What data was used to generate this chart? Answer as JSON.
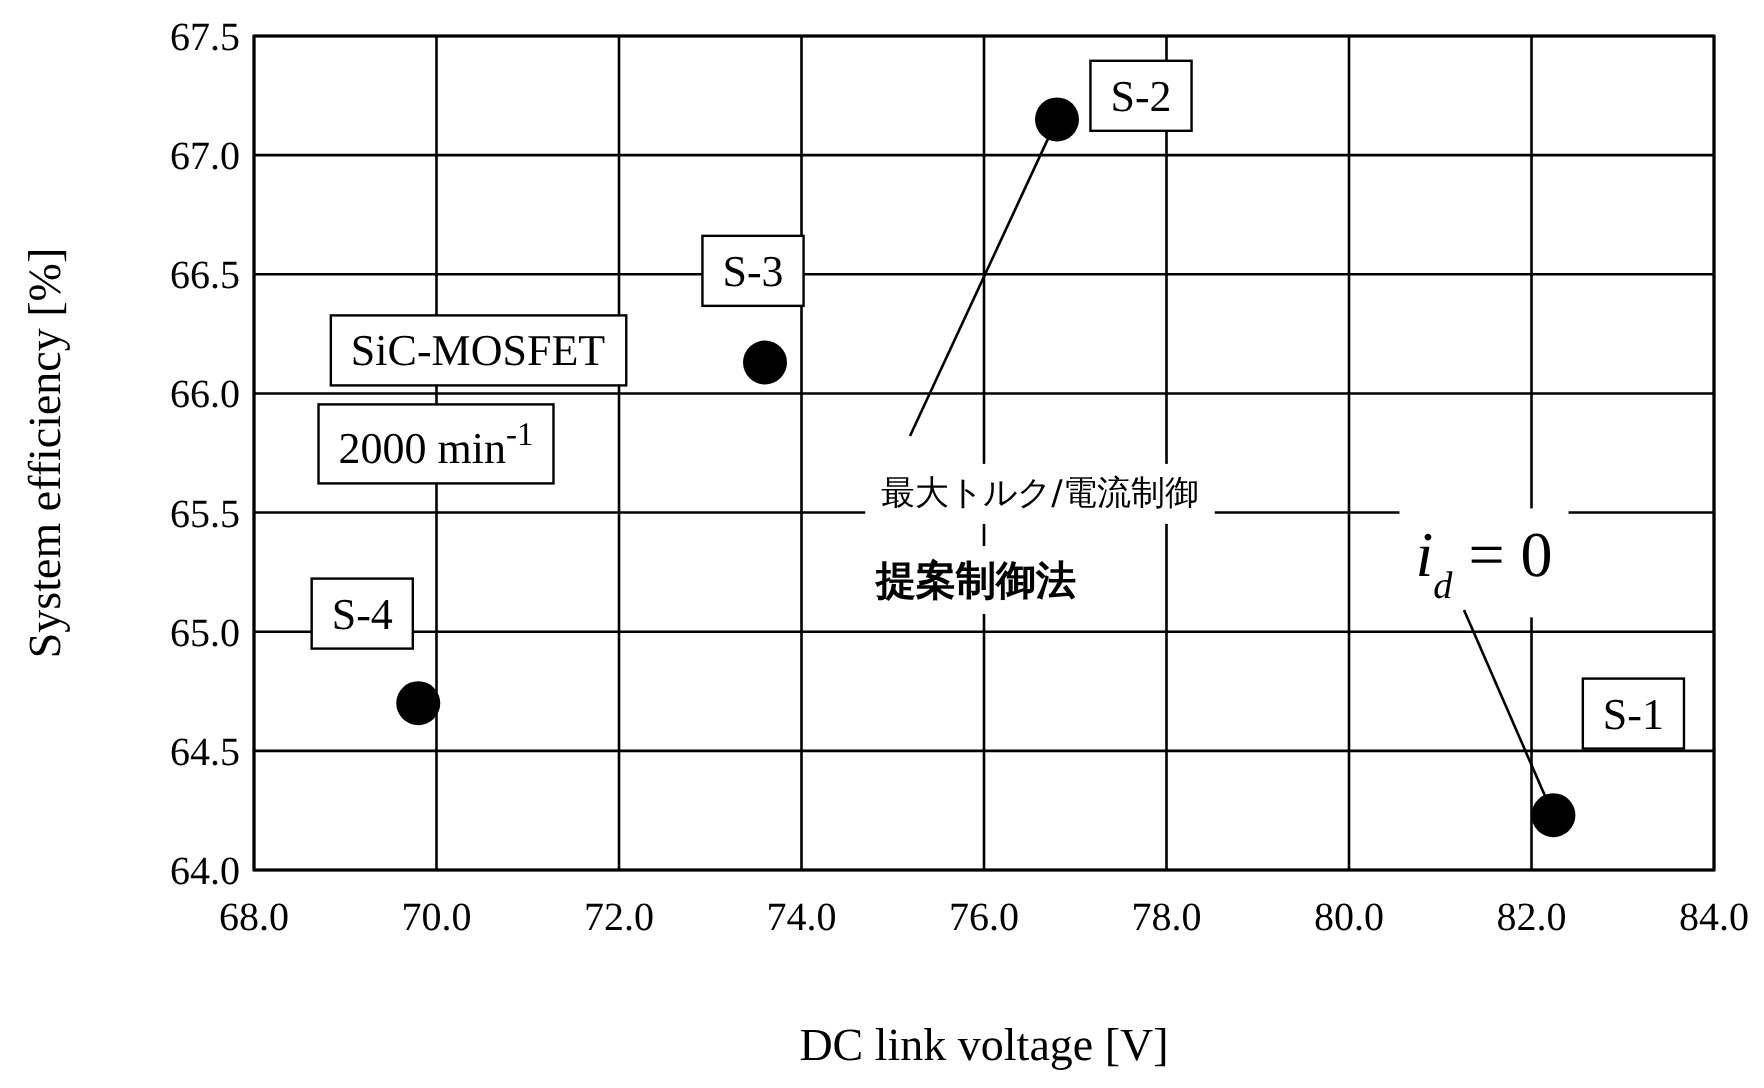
{
  "chart_data": {
    "type": "scatter",
    "xlabel": "DC link voltage [V]",
    "ylabel": "System efficiency [%]",
    "x": [
      82.24,
      76.8,
      73.6,
      69.8
    ],
    "values": [
      64.23,
      67.15,
      66.13,
      64.7
    ],
    "color": "#000000",
    "marker": "circle",
    "grid": true,
    "xlim": [
      68,
      84
    ],
    "ylim": [
      64,
      67.5
    ],
    "xticks": [
      {
        "value": 68,
        "label": "68.0"
      },
      {
        "value": 70,
        "label": "70.0"
      },
      {
        "value": 72,
        "label": "72.0"
      },
      {
        "value": 74,
        "label": "74.0"
      },
      {
        "value": 76,
        "label": "76.0"
      },
      {
        "value": 78,
        "label": "78.0"
      },
      {
        "value": 80,
        "label": "80.0"
      },
      {
        "value": 82,
        "label": "82.0"
      },
      {
        "value": 84,
        "label": "84.0"
      }
    ],
    "yticks": [
      {
        "value": 64,
        "label": "64.0"
      },
      {
        "value": 64.5,
        "label": "64.5"
      },
      {
        "value": 65,
        "label": "65.0"
      },
      {
        "value": 65.5,
        "label": "65.5"
      },
      {
        "value": 66,
        "label": "66.0"
      },
      {
        "value": 66.5,
        "label": "66.5"
      },
      {
        "value": 67,
        "label": "67.0"
      },
      {
        "value": 67.5,
        "label": "67.5"
      }
    ],
    "annotations": [
      {
        "text": "S-1",
        "x": 82.24,
        "y": 64.23
      },
      {
        "text": "S-2",
        "x": 76.8,
        "y": 67.15
      },
      {
        "text": "S-3",
        "x": 73.6,
        "y": 66.13
      },
      {
        "text": "S-4",
        "x": 69.8,
        "y": 64.7
      },
      "SiC-MOSFET",
      "2000 min$^{-1}$",
      {
        "text": "最大トルク/電流制御",
        "x": 76.8,
        "y": 67.15
      },
      "提案制御法",
      {
        "text": "i$_{d}$ = 0",
        "x": 82.24,
        "y": 64.23
      }
    ]
  }
}
